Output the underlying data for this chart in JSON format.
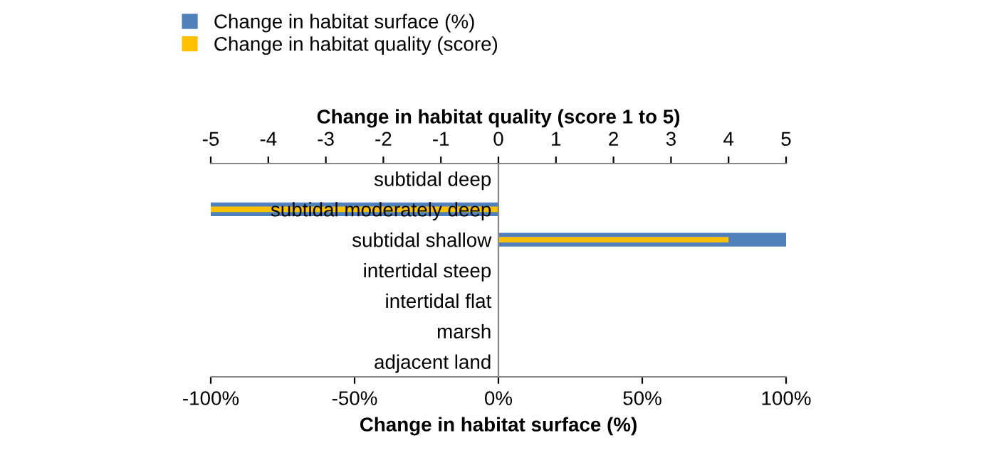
{
  "chart_data": {
    "type": "bar",
    "orientation": "horizontal",
    "xlabel": "Change in habitat surface (%)",
    "x2label": "Change in habitat quality (score 1 to 5)",
    "categories": [
      "subtidal deep",
      "subtidal moderately deep",
      "subtidal shallow",
      "intertidal steep",
      "intertidal flat",
      "marsh",
      "adjacent land"
    ],
    "series": [
      {
        "name": "Change in habitat surface (%)",
        "color": "#4f81bd",
        "values": [
          0,
          -100,
          100,
          0,
          0,
          0,
          0
        ]
      },
      {
        "name": "Change in habitat quality (score)",
        "color": "#ffc000",
        "axis": "x2",
        "values": [
          0,
          -5,
          4,
          0,
          0,
          0,
          0
        ]
      }
    ],
    "xlim": [
      -100,
      100
    ],
    "xticks": [
      {
        "value": -100,
        "label": "-100%"
      },
      {
        "value": -50,
        "label": "-50%"
      },
      {
        "value": 0,
        "label": "0%"
      },
      {
        "value": 50,
        "label": "50%"
      },
      {
        "value": 100,
        "label": "100%"
      }
    ],
    "x2lim": [
      -5,
      5
    ],
    "x2ticks": [
      -5,
      -4,
      -3,
      -2,
      -1,
      0,
      1,
      2,
      3,
      4,
      5
    ],
    "grid": false,
    "legend": "top left"
  }
}
